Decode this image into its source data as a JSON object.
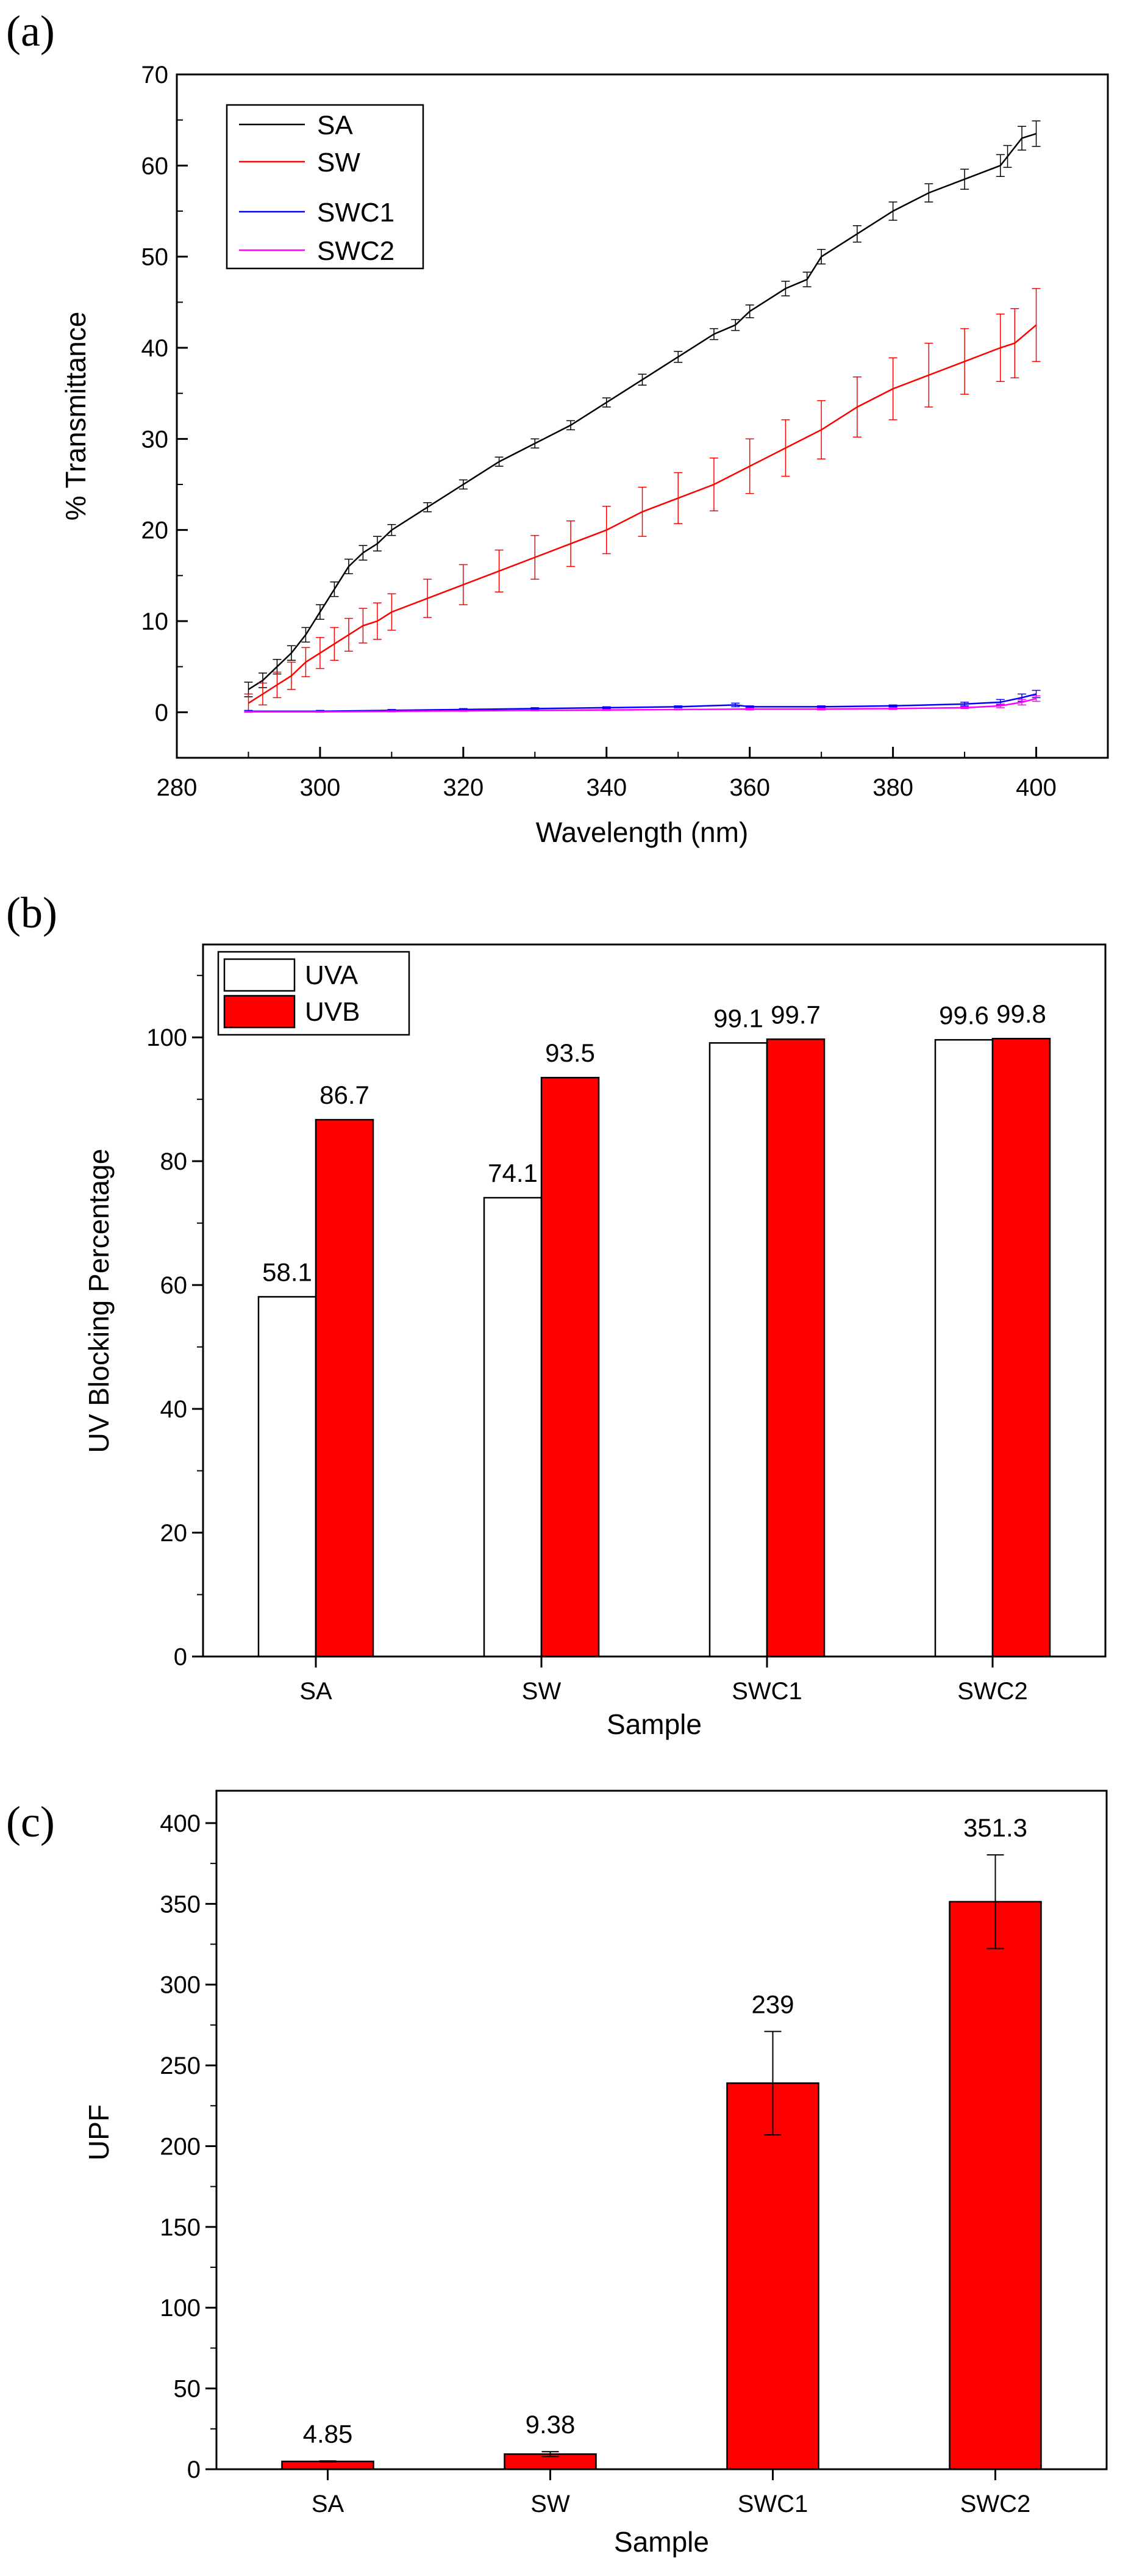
{
  "chart_data": [
    {
      "panel": "(a)",
      "type": "line",
      "xlabel": "Wavelength (nm)",
      "ylabel": "% Transmittance",
      "xlim": [
        280,
        410
      ],
      "ylim": [
        -5,
        70
      ],
      "xticks": [
        280,
        300,
        320,
        340,
        360,
        380,
        400
      ],
      "yticks": [
        0,
        10,
        20,
        30,
        40,
        50,
        60,
        70
      ],
      "legend": "top-left",
      "series": [
        {
          "name": "SA",
          "color": "#000000",
          "x": [
            290,
            292,
            294,
            296,
            298,
            300,
            302,
            304,
            306,
            308,
            310,
            315,
            320,
            325,
            330,
            335,
            340,
            345,
            350,
            355,
            358,
            360,
            365,
            368,
            370,
            375,
            380,
            385,
            390,
            395,
            396,
            398,
            400
          ],
          "y": [
            2.5,
            3.5,
            5,
            6.5,
            8.5,
            11,
            13.5,
            16,
            17.5,
            18.5,
            20,
            22.5,
            25,
            27.5,
            29.5,
            31.5,
            34,
            36.5,
            39,
            41.5,
            42.5,
            44,
            46.5,
            47.5,
            50,
            52.5,
            55,
            57,
            58.5,
            60,
            61,
            63,
            63.5
          ],
          "err": [
            0.8,
            0.8,
            0.8,
            0.8,
            0.8,
            0.8,
            0.8,
            0.8,
            0.8,
            0.8,
            0.6,
            0.5,
            0.5,
            0.5,
            0.5,
            0.5,
            0.5,
            0.6,
            0.6,
            0.6,
            0.6,
            0.7,
            0.8,
            0.8,
            0.8,
            0.9,
            1.0,
            1.0,
            1.1,
            1.2,
            1.2,
            1.3,
            1.4
          ]
        },
        {
          "name": "SW",
          "color": "#ff0000",
          "x": [
            290,
            292,
            294,
            296,
            298,
            300,
            302,
            304,
            306,
            308,
            310,
            315,
            320,
            325,
            330,
            335,
            340,
            345,
            350,
            355,
            360,
            365,
            370,
            375,
            380,
            385,
            390,
            395,
            397,
            400
          ],
          "y": [
            1,
            2,
            3,
            4,
            5.5,
            6.5,
            7.5,
            8.5,
            9.5,
            10,
            11,
            12.5,
            14,
            15.5,
            17,
            18.5,
            20,
            22,
            23.5,
            25,
            27,
            29,
            31,
            33.5,
            35.5,
            37,
            38.5,
            40,
            40.5,
            42.5
          ],
          "err": [
            1.0,
            1.2,
            1.4,
            1.5,
            1.6,
            1.7,
            1.8,
            1.8,
            1.9,
            2.0,
            2.0,
            2.1,
            2.2,
            2.3,
            2.4,
            2.5,
            2.6,
            2.7,
            2.8,
            2.9,
            3.0,
            3.1,
            3.2,
            3.3,
            3.4,
            3.5,
            3.6,
            3.7,
            3.8,
            4.0
          ]
        },
        {
          "name": "SWC1",
          "color": "#0000ff",
          "x": [
            290,
            300,
            310,
            320,
            330,
            340,
            350,
            358,
            360,
            370,
            380,
            390,
            395,
            398,
            400
          ],
          "y": [
            0.1,
            0.1,
            0.2,
            0.3,
            0.4,
            0.5,
            0.6,
            0.8,
            0.6,
            0.6,
            0.7,
            0.9,
            1.1,
            1.6,
            2.0
          ],
          "err": [
            0.1,
            0.1,
            0.1,
            0.1,
            0.1,
            0.1,
            0.1,
            0.2,
            0.1,
            0.1,
            0.1,
            0.2,
            0.3,
            0.4,
            0.4
          ]
        },
        {
          "name": "SWC2",
          "color": "#ff00ff",
          "x": [
            290,
            300,
            310,
            320,
            330,
            340,
            350,
            360,
            370,
            380,
            390,
            395,
            398,
            400
          ],
          "y": [
            0.05,
            0.05,
            0.1,
            0.15,
            0.2,
            0.25,
            0.3,
            0.35,
            0.35,
            0.4,
            0.5,
            0.7,
            1.1,
            1.5
          ],
          "err": [
            0.05,
            0.05,
            0.05,
            0.05,
            0.05,
            0.05,
            0.05,
            0.1,
            0.1,
            0.1,
            0.1,
            0.2,
            0.3,
            0.3
          ]
        }
      ]
    },
    {
      "panel": "(b)",
      "type": "bar",
      "xlabel": "Sample",
      "ylabel": "UV Blocking Percentage",
      "ylim": [
        0,
        115
      ],
      "yticks": [
        0,
        20,
        40,
        60,
        80,
        100
      ],
      "categories": [
        "SA",
        "SW",
        "SWC1",
        "SWC2"
      ],
      "legend": "top-left",
      "series": [
        {
          "name": "UVA",
          "color": "#ffffff",
          "values": [
            58.1,
            74.1,
            99.1,
            99.6
          ],
          "labels": [
            "58.1",
            "74.1",
            "99.1",
            "99.6"
          ]
        },
        {
          "name": "UVB",
          "color": "#ff0000",
          "values": [
            86.7,
            93.5,
            99.7,
            99.8
          ],
          "labels": [
            "86.7",
            "93.5",
            "99.7",
            "99.8"
          ]
        }
      ]
    },
    {
      "panel": "(c)",
      "type": "bar",
      "xlabel": "Sample",
      "ylabel": "UPF",
      "ylim": [
        0,
        420
      ],
      "yticks": [
        0,
        50,
        100,
        150,
        200,
        250,
        300,
        350,
        400
      ],
      "categories": [
        "SA",
        "SW",
        "SWC1",
        "SWC2"
      ],
      "series": [
        {
          "name": "UPF",
          "color": "#ff0000",
          "values": [
            4.85,
            9.38,
            239,
            351.3
          ],
          "labels": [
            "4.85",
            "9.38",
            "239",
            "351.3"
          ],
          "err": [
            0.3,
            1.5,
            32,
            29
          ]
        }
      ]
    }
  ]
}
